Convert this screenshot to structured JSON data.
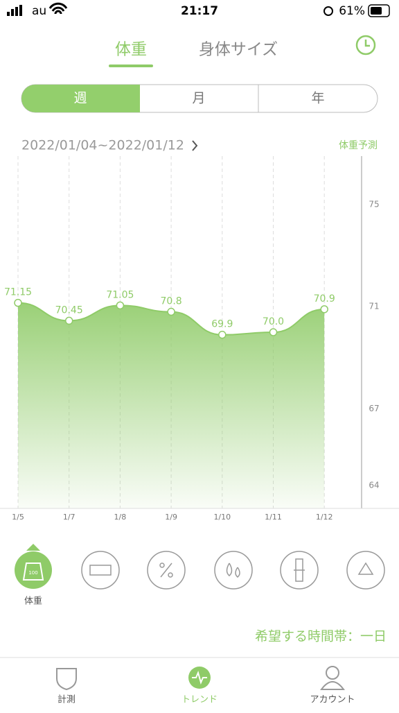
{
  "status_bar": {
    "carrier": "au",
    "time": "21:17",
    "battery": "61%"
  },
  "tabs": [
    "体重",
    "身体サイズ"
  ],
  "periods": [
    "週",
    "月",
    "年"
  ],
  "date_range": "2022/01/04~2022/01/12",
  "forecast_label": "体重予測",
  "chart_data": {
    "type": "area",
    "categories": [
      "1/5",
      "1/7",
      "1/8",
      "1/9",
      "1/10",
      "1/11",
      "1/12"
    ],
    "values": [
      71.15,
      70.45,
      71.05,
      70.8,
      69.9,
      70.0,
      70.9
    ],
    "value_labels": [
      "71.15",
      "70.45",
      "71.05",
      "70.8",
      "69.9",
      "70.0",
      "70.9"
    ],
    "color": "#8fcb68",
    "ylim": [
      63.1,
      76.9
    ],
    "yticks": [
      64,
      67,
      71,
      75
    ]
  },
  "weight_icon_text": "100",
  "metric_label": "体重",
  "time_preference": "希望する時間帯：一日",
  "bottom_nav": [
    "計測",
    "トレンド",
    "アカウント"
  ]
}
